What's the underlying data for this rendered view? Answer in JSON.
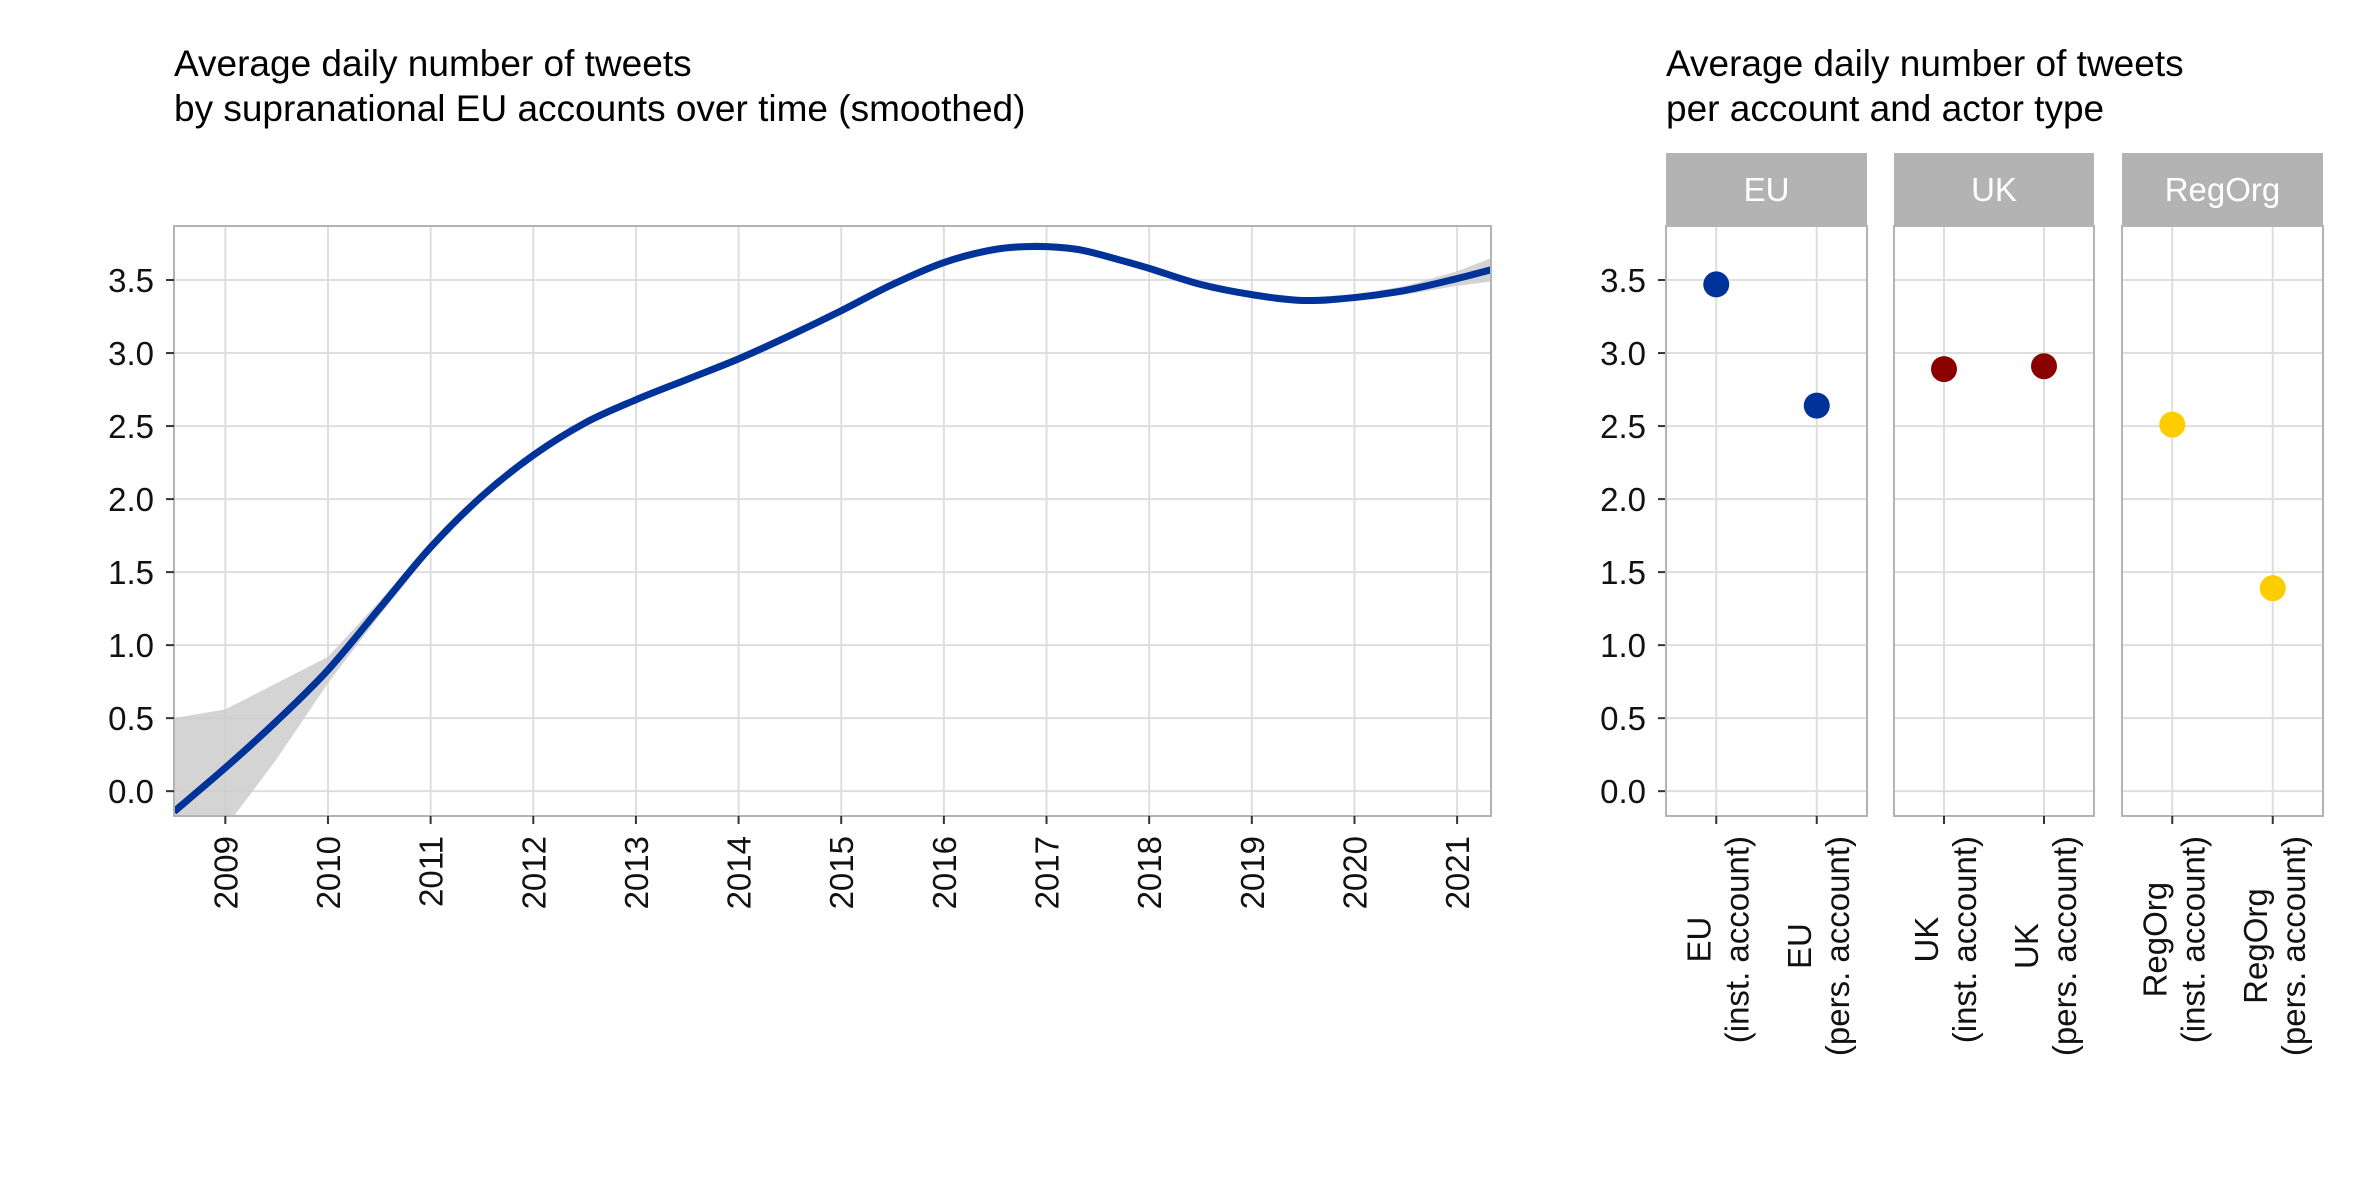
{
  "chart_data": [
    {
      "type": "line",
      "title_lines": [
        "Average daily number of tweets",
        "by supranational EU accounts over time (smoothed)"
      ],
      "xlabel": "",
      "ylabel": "",
      "x_ticks": [
        "2009",
        "2010",
        "2011",
        "2012",
        "2013",
        "2014",
        "2015",
        "2016",
        "2017",
        "2018",
        "2019",
        "2020",
        "2021"
      ],
      "y_ticks": [
        "0.0",
        "0.5",
        "1.0",
        "1.5",
        "2.0",
        "2.5",
        "3.0",
        "3.5"
      ],
      "xlim": [
        2008.5,
        2021.33
      ],
      "ylim": [
        -0.17,
        3.87
      ],
      "grid": true,
      "series": [
        {
          "color": "#003399",
          "band_color": "#cccccc",
          "x": [
            2008.5,
            2009.0,
            2009.5,
            2010.0,
            2010.5,
            2011.0,
            2011.5,
            2012.0,
            2012.5,
            2013.0,
            2013.5,
            2014.0,
            2014.5,
            2015.0,
            2015.5,
            2016.0,
            2016.5,
            2016.9,
            2017.3,
            2017.7,
            2018.0,
            2018.5,
            2019.0,
            2019.5,
            2020.0,
            2020.5,
            2021.0,
            2021.33
          ],
          "y": [
            -0.14,
            0.16,
            0.48,
            0.83,
            1.25,
            1.67,
            2.02,
            2.3,
            2.52,
            2.68,
            2.82,
            2.96,
            3.12,
            3.29,
            3.47,
            3.62,
            3.71,
            3.73,
            3.71,
            3.64,
            3.58,
            3.47,
            3.4,
            3.36,
            3.38,
            3.43,
            3.51,
            3.57
          ],
          "ci_lower": [
            -0.8,
            -0.25,
            0.22,
            0.74,
            1.2,
            1.64,
            2.0,
            2.28,
            2.5,
            2.66,
            2.8,
            2.94,
            3.1,
            3.27,
            3.45,
            3.6,
            3.69,
            3.71,
            3.69,
            3.62,
            3.56,
            3.45,
            3.38,
            3.34,
            3.36,
            3.4,
            3.46,
            3.49
          ],
          "ci_upper": [
            0.5,
            0.56,
            0.74,
            0.92,
            1.3,
            1.7,
            2.04,
            2.32,
            2.54,
            2.7,
            2.84,
            2.98,
            3.14,
            3.31,
            3.49,
            3.64,
            3.73,
            3.76,
            3.73,
            3.66,
            3.6,
            3.49,
            3.42,
            3.38,
            3.4,
            3.46,
            3.56,
            3.65
          ]
        }
      ]
    },
    {
      "type": "scatter",
      "title_lines": [
        "Average daily number of tweets",
        "per account and actor type"
      ],
      "xlabel": "",
      "ylabel": "",
      "y_ticks": [
        "0.0",
        "0.5",
        "1.0",
        "1.5",
        "2.0",
        "2.5",
        "3.0",
        "3.5"
      ],
      "ylim": [
        -0.17,
        3.87
      ],
      "grid": true,
      "facets": [
        {
          "strip": "EU",
          "color": "#003399",
          "categories": [
            [
              "EU",
              "(inst. account)"
            ],
            [
              "EU",
              "(pers. account)"
            ]
          ],
          "values": [
            3.47,
            2.64
          ]
        },
        {
          "strip": "UK",
          "color": "#8b0000",
          "categories": [
            [
              "UK",
              "(inst. account)"
            ],
            [
              "UK",
              "(pers. account)"
            ]
          ],
          "values": [
            2.89,
            2.91
          ]
        },
        {
          "strip": "RegOrg",
          "color": "#ffcc00",
          "categories": [
            [
              "RegOrg",
              "(inst. account)"
            ],
            [
              "RegOrg",
              "(pers. account)"
            ]
          ],
          "values": [
            2.51,
            1.39
          ]
        }
      ]
    }
  ]
}
